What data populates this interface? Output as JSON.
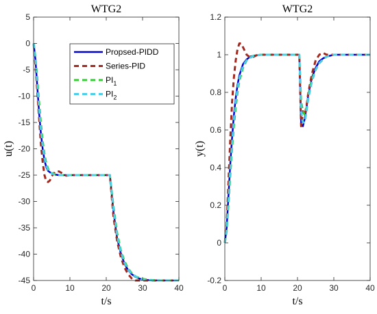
{
  "colors": {
    "propsed_pidd": "#0000CC",
    "series_pid": "#A0281E",
    "pi1": "#33CC33",
    "pi2": "#4DCCE6",
    "axis": "#262626",
    "background": "#FFFFFF"
  },
  "chart_data": [
    {
      "type": "line",
      "title": "WTG2",
      "xlabel": "t/s",
      "ylabel": "u(t)",
      "xlim": [
        0,
        40
      ],
      "ylim": [
        -45,
        5
      ],
      "xticks": [
        0,
        10,
        20,
        30,
        40
      ],
      "yticks": [
        5,
        0,
        -5,
        -10,
        -15,
        -20,
        -25,
        -30,
        -35,
        -40,
        -45
      ],
      "grid": false,
      "legend": {
        "placement": "top-right",
        "entries": [
          {
            "label": "Propsed-PIDD",
            "sub": ""
          },
          {
            "label": "Series-PID",
            "sub": ""
          },
          {
            "label": "PI",
            "sub": "1"
          },
          {
            "label": "PI",
            "sub": "2"
          }
        ]
      },
      "series": [
        {
          "name": "Propsed-PIDD",
          "style": "solid",
          "color_key": "propsed_pidd",
          "x": [
            0,
            0.5,
            1,
            1.5,
            2,
            2.5,
            3,
            3.5,
            4,
            5,
            6,
            7,
            8,
            10,
            15,
            20,
            21,
            22,
            23,
            24,
            25,
            26,
            27,
            28,
            29,
            30,
            32,
            35,
            40
          ],
          "y": [
            0,
            -3,
            -8,
            -13,
            -17,
            -20,
            -22.2,
            -23.5,
            -24.2,
            -24.7,
            -24.9,
            -25,
            -25,
            -25,
            -25,
            -25,
            -25,
            -32,
            -37,
            -39.8,
            -41.8,
            -43,
            -43.8,
            -44.3,
            -44.6,
            -44.8,
            -44.95,
            -45,
            -45
          ]
        },
        {
          "name": "Series-PID",
          "style": "dashed",
          "color_key": "series_pid",
          "x": [
            0,
            0.5,
            1,
            1.5,
            2,
            2.5,
            3,
            3.5,
            4,
            4.5,
            5,
            6,
            7,
            8,
            9,
            10,
            12,
            15,
            20,
            21,
            22,
            23,
            24,
            25,
            26,
            27,
            28,
            30,
            32,
            35,
            40
          ],
          "y": [
            0,
            -4,
            -9,
            -14,
            -19,
            -22.5,
            -25,
            -26.2,
            -26.3,
            -26,
            -25.2,
            -24.3,
            -24.3,
            -24.7,
            -25.1,
            -25,
            -25,
            -25,
            -25,
            -25,
            -33,
            -37.5,
            -40.5,
            -42.5,
            -43.8,
            -44.6,
            -45,
            -45,
            -45,
            -45,
            -45
          ]
        },
        {
          "name": "PI1",
          "style": "dashed",
          "color_key": "pi1",
          "x": [
            0,
            0.5,
            1,
            1.5,
            2,
            2.5,
            3,
            3.5,
            4,
            5,
            6,
            7,
            8,
            10,
            15,
            20,
            21,
            22,
            23,
            24,
            25,
            26,
            27,
            28,
            29,
            30,
            32,
            35,
            40
          ],
          "y": [
            0,
            -2.5,
            -6.5,
            -11,
            -15,
            -18.5,
            -21,
            -22.8,
            -23.8,
            -24.6,
            -24.9,
            -25,
            -25,
            -25,
            -25,
            -25,
            -25,
            -31,
            -36,
            -39.2,
            -41.3,
            -42.7,
            -43.6,
            -44.2,
            -44.5,
            -44.7,
            -44.9,
            -45,
            -45
          ]
        },
        {
          "name": "PI2",
          "style": "dashed",
          "color_key": "pi2",
          "x": [
            0,
            0.5,
            1,
            1.5,
            2,
            2.5,
            3,
            3.5,
            4,
            5,
            6,
            7,
            8,
            10,
            15,
            20,
            21,
            22,
            23,
            24,
            25,
            26,
            27,
            28,
            29,
            30,
            32,
            35,
            40
          ],
          "y": [
            0,
            -2.8,
            -7.5,
            -12.2,
            -16.3,
            -19.5,
            -21.8,
            -23.2,
            -24,
            -24.7,
            -24.9,
            -25,
            -25,
            -25,
            -25,
            -25,
            -25,
            -31.5,
            -36.5,
            -39.5,
            -41.6,
            -42.9,
            -43.7,
            -44.2,
            -44.6,
            -44.8,
            -44.95,
            -45,
            -45
          ]
        }
      ]
    },
    {
      "type": "line",
      "title": "WTG2",
      "xlabel": "t/s",
      "ylabel": "y(t)",
      "xlim": [
        0,
        40
      ],
      "ylim": [
        -0.2,
        1.2
      ],
      "xticks": [
        0,
        10,
        20,
        30,
        40
      ],
      "yticks": [
        1.2,
        1,
        0.8,
        0.6,
        0.4,
        0.2,
        0,
        -0.2
      ],
      "ytick_labels": [
        "1.2",
        "1",
        "0.8",
        "0.6",
        "0.4",
        "0.2",
        "0",
        "-0.2"
      ],
      "grid": false,
      "series": [
        {
          "name": "Propsed-PIDD",
          "style": "solid",
          "color_key": "propsed_pidd",
          "x": [
            0,
            0.5,
            1,
            1.5,
            2,
            2.5,
            3,
            3.5,
            4,
            5,
            6,
            7,
            8,
            10,
            15,
            20,
            20.5,
            21,
            21.5,
            22,
            22.5,
            23,
            24,
            25,
            26,
            27,
            28,
            30,
            35,
            40
          ],
          "y": [
            0,
            0.08,
            0.25,
            0.42,
            0.56,
            0.68,
            0.77,
            0.84,
            0.89,
            0.95,
            0.975,
            0.99,
            0.995,
            1,
            1,
            1,
            1,
            0.63,
            0.62,
            0.66,
            0.72,
            0.79,
            0.88,
            0.93,
            0.965,
            0.98,
            0.99,
            1,
            1,
            1
          ]
        },
        {
          "name": "Series-PID",
          "style": "dashed",
          "color_key": "series_pid",
          "x": [
            0,
            0.5,
            1,
            1.5,
            2,
            2.5,
            3,
            3.5,
            4,
            4.5,
            5,
            6,
            7,
            8,
            9,
            10,
            12,
            15,
            20,
            20.5,
            21,
            21.5,
            22,
            22.5,
            23,
            24,
            25,
            26,
            27,
            28,
            30,
            35,
            40
          ],
          "y": [
            0,
            0.1,
            0.32,
            0.55,
            0.75,
            0.88,
            0.97,
            1.03,
            1.06,
            1.06,
            1.04,
            1.0,
            0.985,
            0.99,
            1.0,
            1.0,
            1.0,
            1,
            1,
            1,
            0.62,
            0.7,
            0.68,
            0.73,
            0.8,
            0.9,
            0.97,
            1.0,
            1.01,
            1.0,
            1,
            1,
            1
          ]
        },
        {
          "name": "PI1",
          "style": "dashed",
          "color_key": "pi1",
          "x": [
            0,
            0.5,
            1,
            1.5,
            2,
            2.5,
            3,
            3.5,
            4,
            5,
            6,
            7,
            8,
            10,
            15,
            20,
            20.5,
            21,
            21.5,
            22,
            22.5,
            23,
            24,
            25,
            26,
            27,
            28,
            30,
            35,
            40
          ],
          "y": [
            0,
            0.06,
            0.2,
            0.36,
            0.5,
            0.62,
            0.72,
            0.8,
            0.86,
            0.93,
            0.97,
            0.985,
            0.995,
            1,
            1,
            1,
            1,
            0.75,
            0.7,
            0.68,
            0.72,
            0.79,
            0.87,
            0.92,
            0.955,
            0.975,
            0.99,
            1,
            1,
            1
          ]
        },
        {
          "name": "PI2",
          "style": "dashed",
          "color_key": "pi2",
          "x": [
            0,
            0.5,
            1,
            1.5,
            2,
            2.5,
            3,
            3.5,
            4,
            5,
            6,
            7,
            8,
            10,
            15,
            20,
            20.5,
            21,
            21.5,
            22,
            22.5,
            23,
            24,
            25,
            26,
            27,
            28,
            30,
            35,
            40
          ],
          "y": [
            0,
            0.07,
            0.22,
            0.39,
            0.53,
            0.65,
            0.75,
            0.82,
            0.875,
            0.94,
            0.97,
            0.985,
            0.995,
            1,
            1,
            1,
            1,
            0.7,
            0.64,
            0.64,
            0.7,
            0.77,
            0.86,
            0.92,
            0.955,
            0.975,
            0.99,
            1,
            1,
            1
          ]
        }
      ]
    }
  ]
}
